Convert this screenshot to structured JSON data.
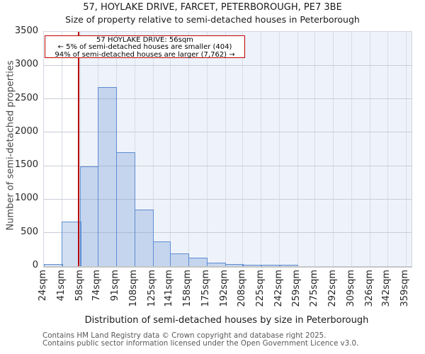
{
  "title": "57, HOYLAKE DRIVE, FARCET, PETERBOROUGH, PE7 3BE",
  "subtitle": "Size of property relative to semi-detached houses in Peterborough",
  "annotation": {
    "title_line": "57 HOYLAKE DRIVE: 56sqm",
    "smaller_line": "← 5% of semi-detached houses are smaller (404)",
    "larger_line": "94% of semi-detached houses are larger (7,762) →"
  },
  "chart_data": {
    "type": "bar",
    "subtype": "histogram",
    "title": "57, HOYLAKE DRIVE, FARCET, PETERBOROUGH, PE7 3BE",
    "subtitle": "Size of property relative to semi-detached houses in Peterborough",
    "xlabel": "Distribution of semi-detached houses by size in Peterborough",
    "ylabel": "Number of semi-detached properties",
    "bin_edges_sqm": [
      24,
      41,
      58,
      74,
      91,
      108,
      125,
      141,
      158,
      175,
      192,
      208,
      225,
      242,
      259,
      275,
      292,
      309,
      326,
      342,
      359
    ],
    "values": [
      30,
      665,
      1490,
      2680,
      1700,
      850,
      370,
      190,
      130,
      55,
      30,
      20,
      10,
      8,
      0,
      0,
      0,
      0,
      0,
      0
    ],
    "x_tick_labels": [
      "24sqm",
      "41sqm",
      "58sqm",
      "74sqm",
      "91sqm",
      "108sqm",
      "125sqm",
      "141sqm",
      "158sqm",
      "175sqm",
      "192sqm",
      "208sqm",
      "225sqm",
      "242sqm",
      "259sqm",
      "275sqm",
      "292sqm",
      "309sqm",
      "326sqm",
      "342sqm",
      "359sqm"
    ],
    "y_ticks": [
      0,
      500,
      1000,
      1500,
      2000,
      2500,
      3000,
      3500
    ],
    "ylim": [
      0,
      3500
    ],
    "grid": true,
    "legend": "none",
    "marker": {
      "value_sqm": 56,
      "color": "#b40000"
    },
    "shade_from_sqm": 56,
    "colors": {
      "bar_fill": "rgba(94,141,208,0.28)",
      "bar_edge": "#5e8dd0",
      "shade": "#eef2fa",
      "grid_horizontal": "#c9ced7",
      "grid_vertical": "#d8dce6",
      "axis": "#c6c6c6",
      "marker_red": "#b40000",
      "annotation_border": "#c00000"
    }
  },
  "footer": {
    "line1": "Contains HM Land Registry data © Crown copyright and database right 2025.",
    "line2": "Contains public sector information licensed under the Open Government Licence v3.0."
  }
}
